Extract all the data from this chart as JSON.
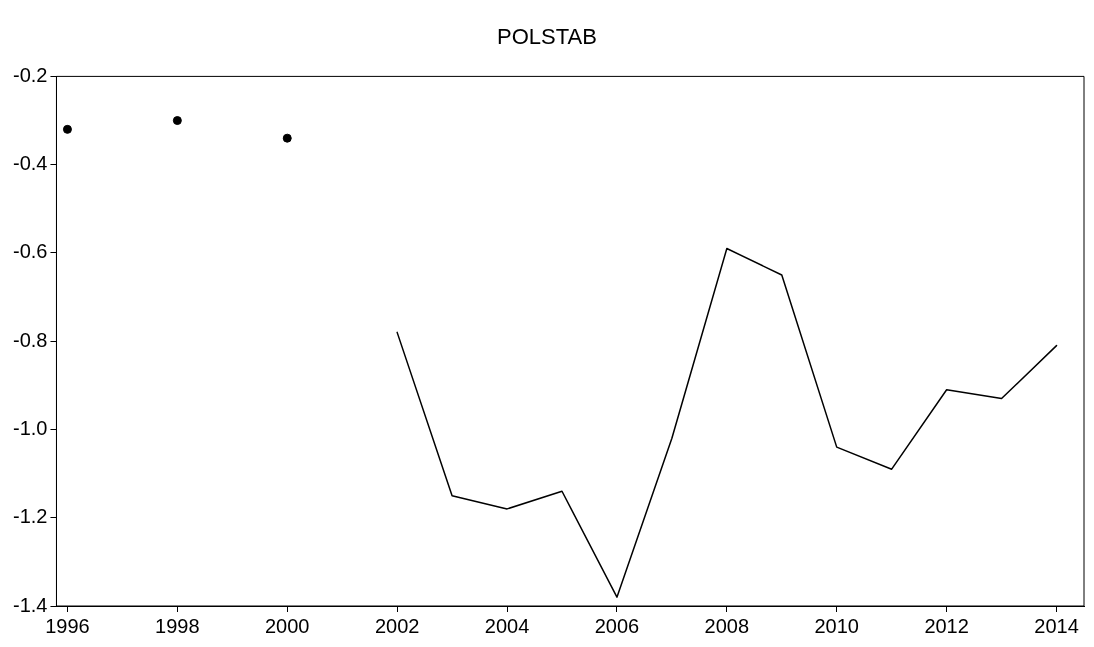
{
  "chart_data": {
    "type": "line",
    "title": "POLSTAB",
    "series": [
      {
        "type": "scatter",
        "color": "#000000",
        "marker": "circle",
        "x": [
          1996,
          1998,
          2000
        ],
        "values": [
          -0.32,
          -0.3,
          -0.34
        ]
      },
      {
        "color": "#000000",
        "x": [
          2002,
          2003,
          2004,
          2005,
          2006,
          2007,
          2008,
          2009,
          2010,
          2011,
          2012,
          2013,
          2014
        ],
        "values": [
          -0.78,
          -1.15,
          -1.18,
          -1.14,
          -1.38,
          -1.02,
          -0.59,
          -0.65,
          -1.04,
          -1.09,
          -0.91,
          -0.93,
          -0.81
        ]
      }
    ],
    "xlim": [
      1995.8,
      2014.5
    ],
    "xticks": [
      1996,
      1998,
      2000,
      2002,
      2004,
      2006,
      2008,
      2010,
      2012,
      2014
    ],
    "ylim": [
      -1.4,
      -0.2
    ],
    "yticks": [
      -1.4,
      -1.2,
      {
        "value": -1,
        "label": "-1.0"
      },
      -0.8,
      -0.6,
      -0.4,
      -0.2
    ],
    "grid": false,
    "legend": false,
    "marker": "none",
    "line_style": "solid"
  }
}
